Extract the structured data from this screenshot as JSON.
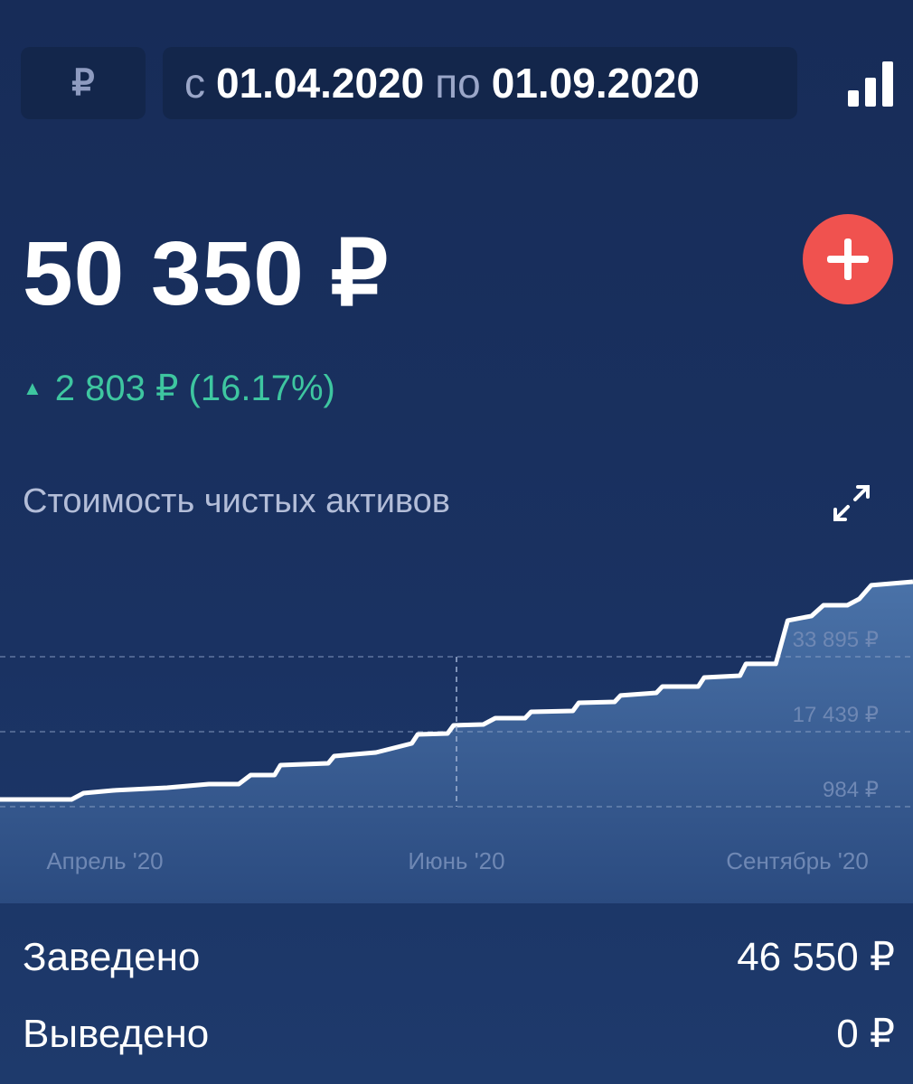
{
  "header": {
    "currency_symbol": "₽",
    "date_from_prefix": "с",
    "date_from": "01.04.2020",
    "date_to_prefix": "по",
    "date_to": "01.09.2020",
    "chart_type_icon": "bar-chart-icon"
  },
  "summary": {
    "total": "50 350 ₽",
    "change": "2 803 ₽ (16.17%)",
    "change_direction": "up",
    "change_color": "#3ec6a0",
    "add_icon": "plus-icon",
    "add_color": "#f0524f"
  },
  "chart_title": "Стоимость чистых активов",
  "chart_data": {
    "type": "area",
    "title": "Стоимость чистых активов",
    "x_range": [
      "2020-04-01",
      "2020-09-01"
    ],
    "x_ticks": [
      "Апрель '20",
      "Июнь '20",
      "Сентябрь '20"
    ],
    "y_ticks": [
      "984 ₽",
      "17 439 ₽",
      "33 895 ₽"
    ],
    "y_tick_values": [
      984,
      17439,
      33895
    ],
    "grid": true,
    "line_color": "#ffffff",
    "points": [
      [
        "2020-04-01",
        2570
      ],
      [
        "2020-04-13",
        2570
      ],
      [
        "2020-04-15",
        3960
      ],
      [
        "2020-04-20",
        4550
      ],
      [
        "2020-04-29",
        5150
      ],
      [
        "2020-05-06",
        5940
      ],
      [
        "2020-05-11",
        5940
      ],
      [
        "2020-05-13",
        7920
      ],
      [
        "2020-05-17",
        7920
      ],
      [
        "2020-05-18",
        10100
      ],
      [
        "2020-05-26",
        10500
      ],
      [
        "2020-05-27",
        12090
      ],
      [
        "2020-06-03",
        12880
      ],
      [
        "2020-06-09",
        14860
      ],
      [
        "2020-06-10",
        16850
      ],
      [
        "2020-06-15",
        17050
      ],
      [
        "2020-06-16",
        18830
      ],
      [
        "2020-06-21",
        19030
      ],
      [
        "2020-06-23",
        20420
      ],
      [
        "2020-06-28",
        20420
      ],
      [
        "2020-06-29",
        21810
      ],
      [
        "2020-07-06",
        22000
      ],
      [
        "2020-07-07",
        23790
      ],
      [
        "2020-07-13",
        23990
      ],
      [
        "2020-07-14",
        25380
      ],
      [
        "2020-07-20",
        25970
      ],
      [
        "2020-07-21",
        27360
      ],
      [
        "2020-07-27",
        27360
      ],
      [
        "2020-07-28",
        29340
      ],
      [
        "2020-08-03",
        29740
      ],
      [
        "2020-08-04",
        32320
      ],
      [
        "2020-08-09",
        32320
      ],
      [
        "2020-08-11",
        41840
      ],
      [
        "2020-08-15",
        42830
      ],
      [
        "2020-08-17",
        45200
      ],
      [
        "2020-08-21",
        45200
      ],
      [
        "2020-08-23",
        46590
      ],
      [
        "2020-08-25",
        49570
      ],
      [
        "2020-09-01",
        50350
      ]
    ]
  },
  "totals": {
    "deposited_label": "Заведено",
    "deposited_value": "46 550 ₽",
    "withdrawn_label": "Выведено",
    "withdrawn_value": "0 ₽"
  }
}
